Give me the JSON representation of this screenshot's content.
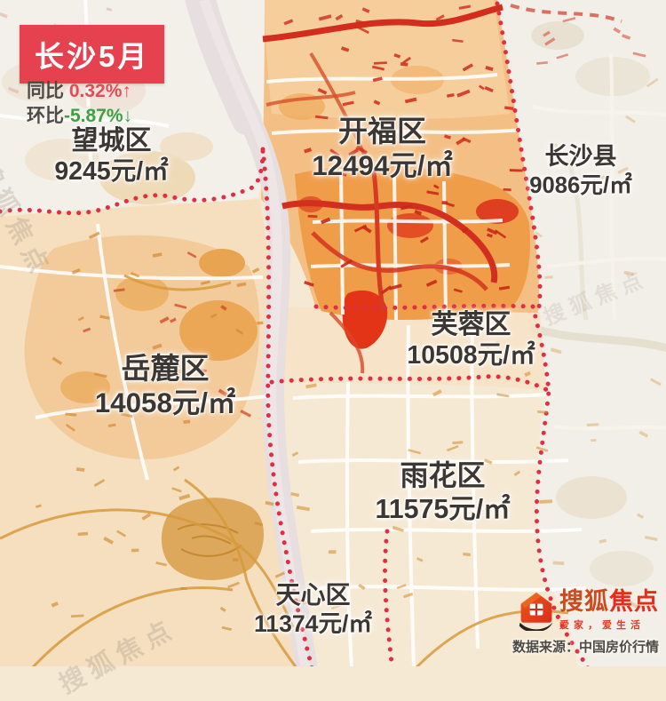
{
  "price_tag": {
    "title": "长沙5月",
    "yoy": {
      "label": "同比",
      "value": " 0.32%",
      "arrow": "↑",
      "direction": "up"
    },
    "mom": {
      "label": "环比",
      "value": "-5.87%",
      "arrow": "↓",
      "direction": "down"
    }
  },
  "districts": [
    {
      "name": "望城区",
      "price": "9245元/㎡",
      "price_value": 9245
    },
    {
      "name": "开福区",
      "price": "12494元/㎡",
      "price_value": 12494
    },
    {
      "name": "长沙县",
      "price": "9086元/㎡",
      "price_value": 9086
    },
    {
      "name": "芙蓉区",
      "price": "10508元/㎡",
      "price_value": 10508
    },
    {
      "name": "岳麓区",
      "price": "14058元/㎡",
      "price_value": 14058
    },
    {
      "name": "雨花区",
      "price": "11575元/㎡",
      "price_value": 11575
    },
    {
      "name": "天心区",
      "price": "11374元/㎡",
      "price_value": 11374
    }
  ],
  "footer": {
    "brand_part1": "搜狐",
    "brand_part2": "焦点",
    "tagline": "爱家，爱生活",
    "source": "数据来源：中国房价行情"
  },
  "watermark": "搜狐焦点",
  "colors": {
    "banner_red": "#e5414e",
    "up_red": "#e84956",
    "down_green": "#3aa23e",
    "boundary_red": "#e02f42",
    "core_orange": "#f09d4a",
    "river_gray": "#e6dedf",
    "brand_red": "#e92c1a"
  }
}
